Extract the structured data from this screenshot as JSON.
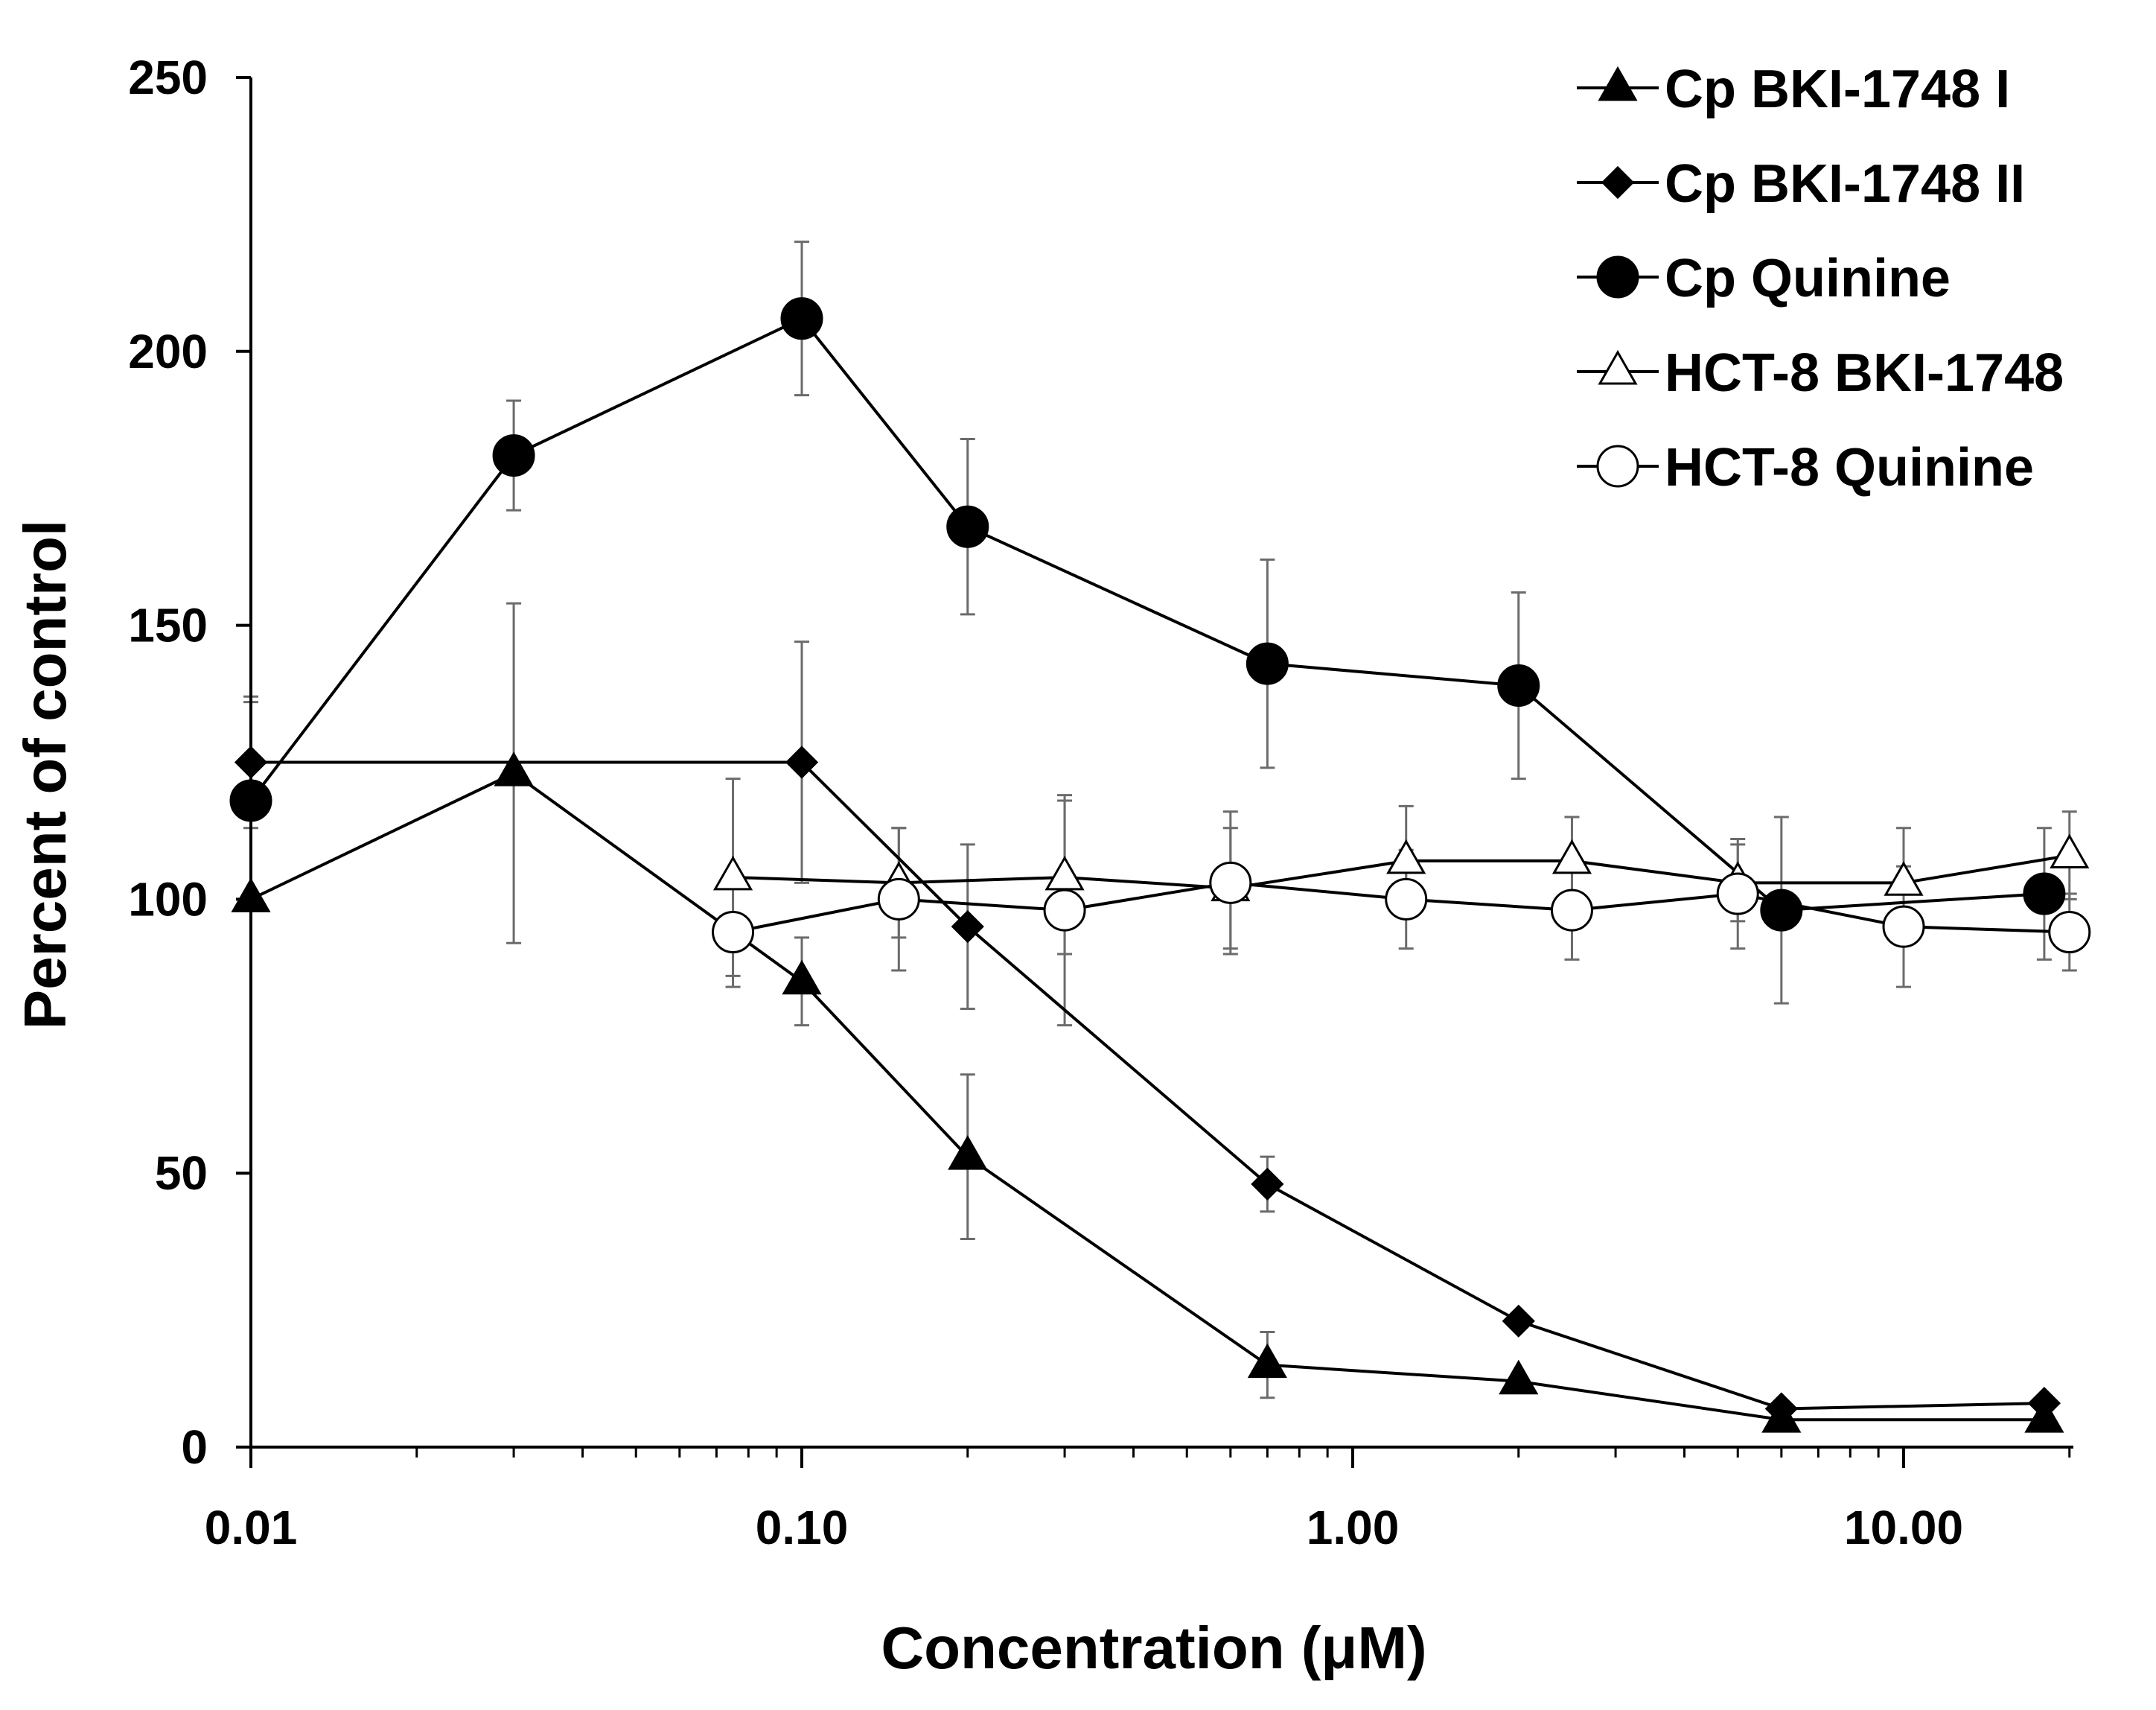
{
  "chart_data": {
    "type": "line",
    "title": "",
    "xlabel": "Concentration (μM)",
    "ylabel": "Percent of control",
    "xscale": "log",
    "xlim": [
      0.01,
      20
    ],
    "ylim": [
      0,
      250
    ],
    "x_ticks": [
      0.01,
      0.1,
      1,
      10
    ],
    "x_tick_labels": [
      "0.01",
      "0.10",
      "1.00",
      "10.00"
    ],
    "y_ticks": [
      0,
      50,
      100,
      150,
      200,
      250
    ],
    "y_tick_labels": [
      "0",
      "50",
      "100",
      "150",
      "200",
      "250"
    ],
    "grid": false,
    "legend_position": "top-right",
    "series": [
      {
        "name": "Cp BKI-1748 I",
        "marker": "filled-triangle",
        "x": [
          0.01,
          0.03,
          0.1,
          0.2,
          0.7,
          2,
          6,
          18
        ],
        "y": [
          100,
          123,
          85,
          53,
          15,
          12,
          5,
          5
        ],
        "err": [
          0,
          31,
          8,
          15,
          6,
          0,
          0,
          0
        ]
      },
      {
        "name": "Cp BKI-1748 II",
        "marker": "filled-diamond",
        "x": [
          0.01,
          0.1,
          0.2,
          0.7,
          2,
          6,
          18
        ],
        "y": [
          125,
          125,
          95,
          48,
          23,
          7,
          8
        ],
        "err": [
          12,
          22,
          15,
          5,
          0,
          0,
          0
        ]
      },
      {
        "name": "Cp Quinine",
        "marker": "filled-circle",
        "x": [
          0.01,
          0.03,
          0.1,
          0.2,
          0.7,
          2,
          6,
          18
        ],
        "y": [
          118,
          181,
          206,
          168,
          143,
          139,
          98,
          101
        ],
        "err": [
          18,
          10,
          14,
          16,
          19,
          17,
          17,
          12
        ]
      },
      {
        "name": "HCT-8 BKI-1748",
        "marker": "open-triangle",
        "x": [
          0.075,
          0.15,
          0.3,
          0.6,
          1.25,
          2.5,
          5,
          10,
          20
        ],
        "y": [
          104,
          103,
          104,
          102,
          107,
          107,
          103,
          103,
          108
        ],
        "err": [
          18,
          10,
          14,
          11,
          10,
          8,
          7,
          10,
          8
        ]
      },
      {
        "name": "HCT-8 Quinine",
        "marker": "open-circle",
        "x": [
          0.075,
          0.15,
          0.3,
          0.6,
          1.25,
          2.5,
          5,
          10,
          20
        ],
        "y": [
          94,
          100,
          98,
          103,
          100,
          98,
          101,
          95,
          94
        ],
        "err": [
          10,
          13,
          21,
          13,
          9,
          9,
          10,
          11,
          7
        ]
      }
    ]
  }
}
